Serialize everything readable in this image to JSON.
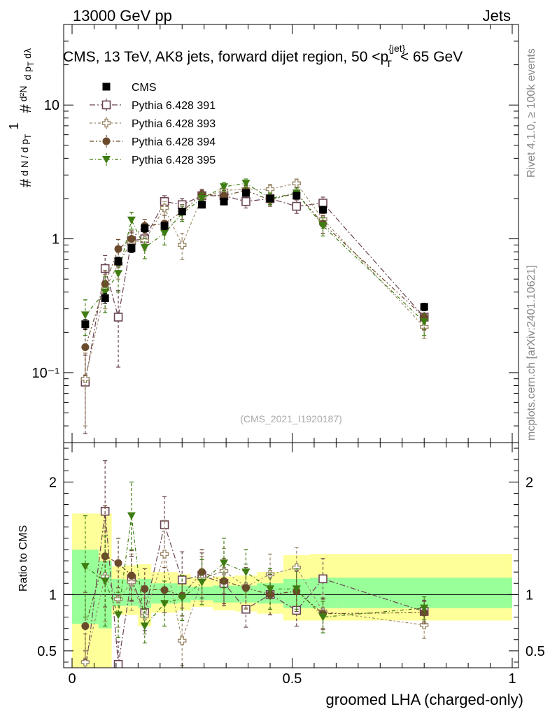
{
  "header": {
    "left": "13000 GeV pp",
    "right": "Jets"
  },
  "side": {
    "top": "Rivet 4.1.0, ≥ 100k events",
    "bottom": "mcplots.cern.ch [arXiv:2401.10621]"
  },
  "colors": {
    "cms": "#000000",
    "p391": "#6b4453",
    "p393": "#9c8a6a",
    "p394": "#6b4a2c",
    "p395": "#3f7d12",
    "band_yellow": "#ffff99",
    "band_green": "#99ff99"
  },
  "chart_data": {
    "type": "scatter",
    "title": "CMS, 13 TeV, AK8 jets, forward dijet region, 50 <p_T^{jet}< 65 GeV",
    "watermark": "(CMS_2021_I1920187)",
    "xlabel": "groomed LHA (charged-only)",
    "ylabel_top": "1/(dN/dp_T) d²N/(dp_T dλ)",
    "ylabel_ratio": "Ratio to CMS",
    "xlim": [
      0,
      1
    ],
    "ylim_top": [
      0.03,
      40
    ],
    "yscale_top": "log",
    "ylim_ratio": [
      0.35,
      2.35
    ],
    "x_ticks": [
      "0",
      "0.5",
      "1"
    ],
    "y_ticks_top": [
      "10⁻¹",
      "1",
      "10"
    ],
    "y_ticks_ratio": [
      "0.5",
      "1",
      "2"
    ],
    "x": [
      0.03,
      0.075,
      0.105,
      0.135,
      0.165,
      0.21,
      0.25,
      0.295,
      0.345,
      0.395,
      0.45,
      0.51,
      0.57,
      0.8
    ],
    "bin_edges": [
      0,
      0.06,
      0.09,
      0.12,
      0.15,
      0.18,
      0.24,
      0.27,
      0.32,
      0.37,
      0.42,
      0.48,
      0.54,
      0.6,
      1.0
    ],
    "legend": [
      "CMS",
      "Pythia 6.428 391",
      "Pythia 6.428 393",
      "Pythia 6.428 394",
      "Pythia 6.428 395"
    ],
    "data": {
      "name": "CMS",
      "values": [
        0.23,
        0.36,
        0.68,
        0.85,
        1.2,
        1.25,
        1.6,
        1.8,
        1.9,
        2.2,
        2.0,
        2.1,
        1.65,
        0.31
      ],
      "err": [
        0.02,
        0.03,
        0.05,
        0.06,
        0.08,
        0.08,
        0.09,
        0.1,
        0.1,
        0.11,
        0.11,
        0.11,
        0.1,
        0.02
      ]
    },
    "band": {
      "green_lo": [
        0.74,
        0.7,
        0.9,
        0.9,
        0.88,
        0.92,
        0.93,
        0.95,
        0.93,
        0.93,
        0.92,
        0.88,
        0.88,
        0.88
      ],
      "green_hi": [
        1.4,
        1.3,
        1.14,
        1.13,
        1.14,
        1.1,
        1.08,
        1.07,
        1.08,
        1.08,
        1.1,
        1.14,
        1.15,
        1.15
      ],
      "yellow_lo": [
        0.3,
        0.3,
        0.82,
        0.82,
        0.72,
        0.84,
        0.86,
        0.89,
        0.86,
        0.85,
        0.83,
        0.77,
        0.77,
        0.77
      ],
      "yellow_hi": [
        1.72,
        1.72,
        1.25,
        1.26,
        1.27,
        1.2,
        1.18,
        1.15,
        1.16,
        1.17,
        1.2,
        1.35,
        1.36,
        1.36
      ]
    },
    "series": [
      {
        "name": "Pythia 6.428 391",
        "color_key": "p391",
        "marker": "open-square",
        "dx": 0.0,
        "values": [
          0.085,
          0.6,
          0.26,
          0.97,
          1.0,
          1.9,
          1.8,
          2.1,
          2.1,
          1.9,
          2.0,
          1.75,
          1.85,
          0.26
        ],
        "err": [
          0.05,
          0.15,
          0.15,
          0.15,
          0.15,
          0.2,
          0.2,
          0.2,
          0.2,
          0.2,
          0.2,
          0.2,
          0.2,
          0.05
        ]
      },
      {
        "name": "Pythia 6.428 393",
        "color_key": "p393",
        "marker": "open-cross",
        "dx": 0.0,
        "values": [
          0.09,
          0.42,
          0.65,
          0.95,
          0.97,
          1.7,
          0.9,
          2.05,
          2.3,
          2.35,
          2.35,
          2.6,
          1.4,
          0.22
        ],
        "err": [
          0.05,
          0.12,
          0.15,
          0.15,
          0.15,
          0.2,
          0.2,
          0.2,
          0.2,
          0.2,
          0.2,
          0.2,
          0.2,
          0.04
        ]
      },
      {
        "name": "Pythia 6.428 394",
        "color_key": "p394",
        "marker": "filled-circle",
        "dx": 0.0,
        "values": [
          0.155,
          0.46,
          0.84,
          1.0,
          1.25,
          1.3,
          1.6,
          2.15,
          2.1,
          2.3,
          1.95,
          2.2,
          1.3,
          0.26
        ],
        "err": [
          0.06,
          0.12,
          0.15,
          0.15,
          0.15,
          0.2,
          0.2,
          0.2,
          0.2,
          0.2,
          0.2,
          0.2,
          0.2,
          0.05
        ]
      },
      {
        "name": "Pythia 6.428 395",
        "color_key": "p395",
        "marker": "filled-triangle-down",
        "dx": 0.0,
        "values": [
          0.27,
          0.4,
          0.55,
          1.38,
          0.86,
          1.1,
          1.55,
          2.0,
          2.45,
          2.6,
          2.0,
          2.2,
          1.25,
          0.24
        ],
        "err": [
          0.08,
          0.12,
          0.15,
          0.2,
          0.15,
          0.2,
          0.2,
          0.2,
          0.2,
          0.2,
          0.2,
          0.2,
          0.2,
          0.05
        ]
      }
    ],
    "ratios": [
      {
        "name": "Pythia 6.428 391",
        "values": [
          0.3,
          1.74,
          0.38,
          1.14,
          0.84,
          1.62,
          1.13,
          1.17,
          1.1,
          0.87,
          1.0,
          0.86,
          1.14,
          0.85
        ],
        "err": [
          0.2,
          0.45,
          0.2,
          0.2,
          0.16,
          0.25,
          0.25,
          0.2,
          0.2,
          0.16,
          0.18,
          0.14,
          0.18,
          0.1
        ]
      },
      {
        "name": "Pythia 6.428 393",
        "values": [
          0.4,
          1.16,
          0.96,
          1.11,
          0.81,
          1.36,
          0.59,
          1.14,
          1.21,
          1.07,
          1.18,
          1.24,
          0.85,
          0.73
        ],
        "err": [
          0.25,
          0.4,
          0.25,
          0.25,
          0.16,
          0.3,
          0.22,
          0.2,
          0.2,
          0.2,
          0.18,
          0.18,
          0.15,
          0.12
        ]
      },
      {
        "name": "Pythia 6.428 394",
        "values": [
          0.72,
          1.34,
          1.28,
          1.17,
          1.05,
          1.04,
          0.99,
          1.2,
          1.12,
          1.06,
          1.0,
          1.03,
          0.83,
          0.84
        ],
        "err": [
          0.3,
          0.45,
          0.22,
          0.22,
          0.18,
          0.2,
          0.18,
          0.2,
          0.2,
          0.18,
          0.18,
          0.18,
          0.14,
          0.1
        ]
      },
      {
        "name": "Pythia 6.428 395",
        "values": [
          1.25,
          1.12,
          0.82,
          1.7,
          0.72,
          0.92,
          0.97,
          1.11,
          1.28,
          1.2,
          1.05,
          1.05,
          0.8,
          0.88
        ],
        "err": [
          0.45,
          0.4,
          0.2,
          0.3,
          0.15,
          0.2,
          0.2,
          0.2,
          0.22,
          0.2,
          0.18,
          0.18,
          0.14,
          0.1
        ]
      }
    ]
  }
}
